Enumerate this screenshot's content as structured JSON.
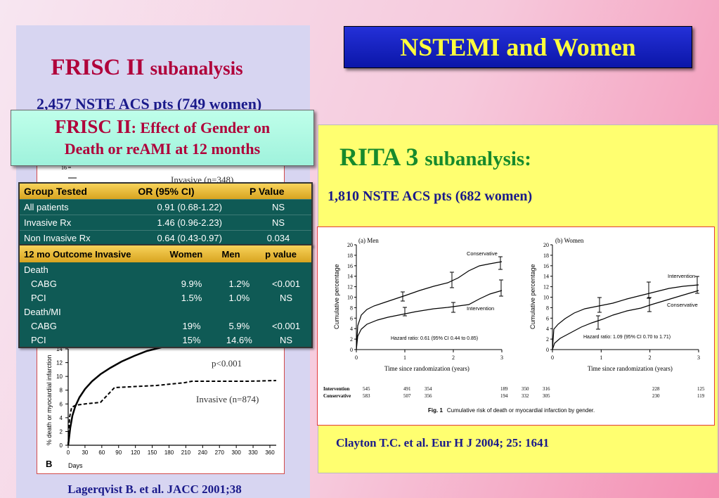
{
  "slide_title": "NSTEMI and Women",
  "left": {
    "title_main": "FRISC II",
    "title_small": "subanalysis",
    "subtitle": "2,457 NSTE ACS pts (749 women)",
    "box_title_main": "FRISC II",
    "box_title_small": ": Effect of  Gender on",
    "box_line2": "Death or reAMI at 12 months",
    "table1": {
      "headers": [
        "Group Tested",
        "OR (95% CI)",
        "P Value"
      ],
      "rows": [
        [
          "All patients",
          "0.91 (0.68-1.22)",
          "NS"
        ],
        [
          "Invasive Rx",
          "1.46 (0.96-2.23)",
          "NS"
        ],
        [
          "Non Invasive Rx",
          "0.64 (0.43-0.97)",
          "0.034"
        ]
      ]
    },
    "table2": {
      "headers": [
        "12 mo Outcome Invasive",
        "Women",
        "Men",
        "p value"
      ],
      "group1": "Death",
      "group1_rows": [
        [
          "CABG",
          "9.9%",
          "1.2%",
          "<0.001"
        ],
        [
          "PCI",
          "1.5%",
          "1.0%",
          "NS"
        ]
      ],
      "group2": "Death/MI",
      "group2_rows": [
        [
          "CABG",
          "19%",
          "5.9%",
          "<0.001"
        ],
        [
          "PCI",
          "15%",
          "14.6%",
          "NS"
        ]
      ]
    },
    "chart": {
      "top_label": "Invasive (n=348)",
      "top_tick": "16",
      "pvalue": "p<0.001",
      "invasive_label": "Invasive (n=874)",
      "ylabel": "% death or myocardial infarction",
      "panel_letter": "B",
      "xlabel": "Days",
      "y_ticks": [
        "14",
        "12",
        "10",
        "8",
        "6",
        "4",
        "2",
        "0"
      ],
      "x_ticks": [
        "0",
        "30",
        "60",
        "90",
        "120",
        "150",
        "180",
        "210",
        "240",
        "270",
        "300",
        "330",
        "360"
      ]
    },
    "citation": "Lagerqvist B. et al. JACC 2001;38"
  },
  "right": {
    "title_main": "RITA 3",
    "title_small": "subanalysis:",
    "subtitle": "1,810 NSTE ACS pts (682 women)",
    "citation": "Clayton T.C. et al. Eur H J 2004; 25: 1641",
    "figure": {
      "panel_a": "(a) Men",
      "panel_b": "(b) Women",
      "ylabel": "Cumulative percentage",
      "xlabel": "Time since randomization (years)",
      "y_ticks": [
        "20",
        "18",
        "16",
        "14",
        "12",
        "10",
        "8",
        "6",
        "4",
        "2",
        "0"
      ],
      "x_ticks": [
        "0",
        "1",
        "2",
        "3"
      ],
      "men_conservative": "Conservative",
      "men_intervention": "Intervention",
      "men_hazard": "Hazard ratio: 0.61 (95% CI 0.44 to 0.85)",
      "women_intervention": "Intervention",
      "women_conservative": "Conservative",
      "women_hazard": "Hazard ratio: 1.09 (95% CI 0.70 to 1.71)",
      "risk_labels": [
        "Intervention",
        "Conservative"
      ],
      "men_risk_intervention": [
        "545",
        "491",
        "354",
        "189"
      ],
      "men_risk_conservative": [
        "583",
        "507",
        "356",
        "194"
      ],
      "women_risk_intervention": [
        "350",
        "316",
        "228",
        "125"
      ],
      "women_risk_conservative": [
        "332",
        "305",
        "230",
        "119"
      ],
      "caption_bold": "Fig. 1",
      "caption": "Cumulative risk of death or myocardial infarction by gender."
    }
  }
}
